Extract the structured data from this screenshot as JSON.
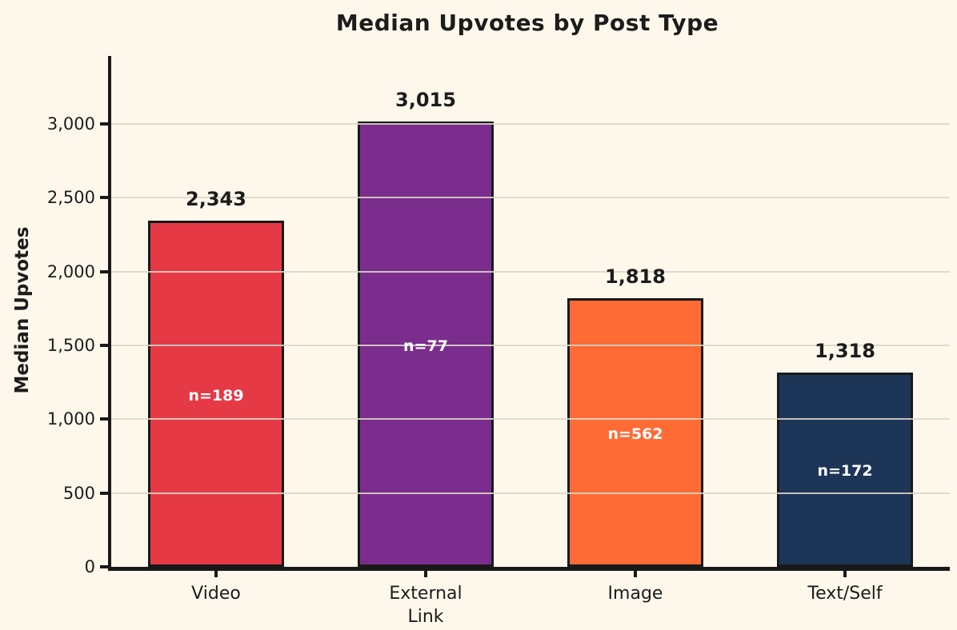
{
  "chart_data": {
    "type": "bar",
    "title": "Median Upvotes by Post Type",
    "ylabel": "Median Upvotes",
    "xlabel": "",
    "categories": [
      "Video",
      "External\nLink",
      "Image",
      "Text/Self"
    ],
    "values": [
      2343,
      3015,
      1818,
      1318
    ],
    "value_labels": [
      "2,343",
      "3,015",
      "1,818",
      "1,318"
    ],
    "sample_size_labels": [
      "n=189",
      "n=77",
      "n=562",
      "n=172"
    ],
    "sample_sizes": [
      189,
      77,
      562,
      172
    ],
    "bar_colors": [
      "#E63946",
      "#7B2D8E",
      "#FF6B35",
      "#1D3557"
    ],
    "bar_edge_color": "#191919",
    "ylim": [
      0,
      3460
    ],
    "yticks": [
      0,
      500,
      1000,
      1500,
      2000,
      2500,
      3000
    ],
    "ytick_labels": [
      "0",
      "500",
      "1,000",
      "1,500",
      "2,000",
      "2,500",
      "3,000"
    ],
    "grid": {
      "axis": "y",
      "drawn_above_bars": true,
      "color": "#DBD6C7"
    },
    "legend": "none",
    "background_color": "#FDF8EB",
    "text_color": "#1c1c1c"
  }
}
